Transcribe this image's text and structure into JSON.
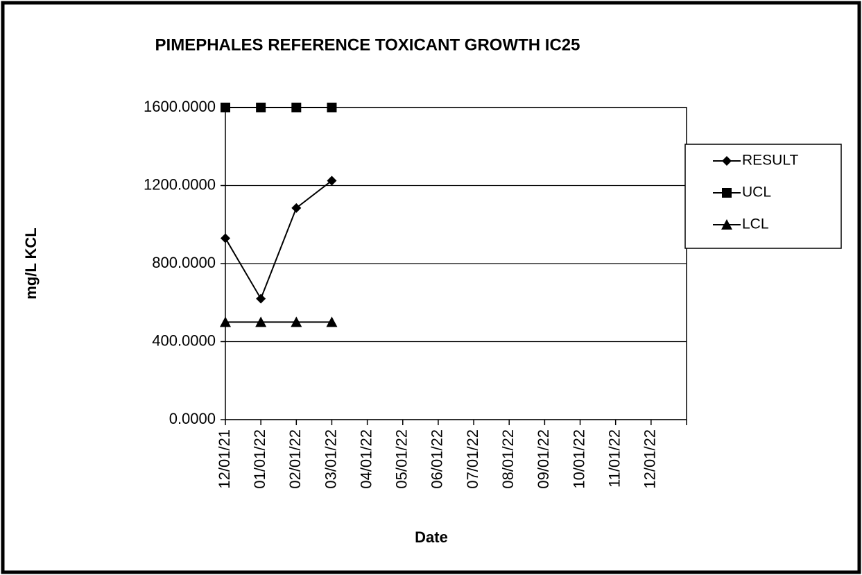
{
  "chart_data": {
    "type": "line",
    "title": "PIMEPHALES REFERENCE TOXICANT GROWTH IC25",
    "x_label": "Date",
    "y_label": "mg/L KCL",
    "categories": [
      "12/01/21",
      "01/01/22",
      "02/01/22",
      "03/01/22",
      "04/01/22",
      "05/01/22",
      "06/01/22",
      "07/01/22",
      "08/01/22",
      "09/01/22",
      "10/01/22",
      "11/01/22",
      "12/01/22"
    ],
    "series": [
      {
        "name": "RESULT",
        "color": "#000000",
        "marker": "diamond",
        "values": [
          930,
          620,
          1085,
          1225,
          null,
          null,
          null,
          null,
          null,
          null,
          null,
          null,
          null
        ]
      },
      {
        "name": "UCL",
        "color": "#000000",
        "marker": "square",
        "values": [
          1600,
          1600,
          1600,
          1600,
          null,
          null,
          null,
          null,
          null,
          null,
          null,
          null,
          null
        ]
      },
      {
        "name": "LCL",
        "color": "#000000",
        "marker": "triangle",
        "values": [
          500,
          500,
          500,
          500,
          null,
          null,
          null,
          null,
          null,
          null,
          null,
          null,
          null
        ]
      }
    ],
    "ylim": [
      0,
      1600
    ],
    "yticks": [
      {
        "value": 0,
        "label": "0.0000"
      },
      {
        "value": 400,
        "label": "400.0000"
      },
      {
        "value": 800,
        "label": "800.0000"
      },
      {
        "value": 1200,
        "label": "1200.0000"
      },
      {
        "value": 1600,
        "label": "1600.0000"
      }
    ],
    "grid": true,
    "legend": "right"
  }
}
